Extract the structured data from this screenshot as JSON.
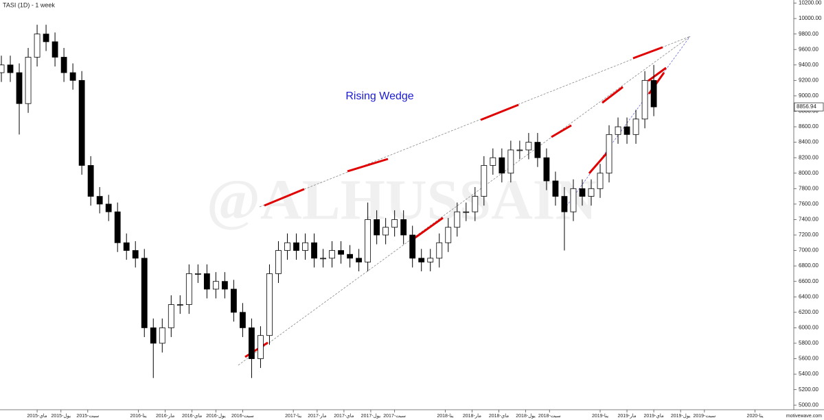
{
  "chart_data": {
    "type": "candlestick",
    "title": "TASI (1D) - 1 week",
    "annotation": "Rising Wedge",
    "watermark": "@ALHUSSAIN",
    "brand": "motivewave.com",
    "last_price_label": "8856.94",
    "x": [
      0,
      3,
      6,
      9,
      12,
      15,
      18,
      21,
      24,
      27,
      30,
      33,
      36,
      39,
      42,
      45,
      48,
      51,
      54,
      57,
      60,
      63,
      66,
      69,
      72,
      75,
      78,
      81,
      84,
      87,
      90,
      93,
      96,
      99,
      102,
      105,
      108,
      111,
      114,
      117,
      120,
      123,
      126,
      129,
      132,
      135,
      138,
      141,
      144,
      147,
      150,
      153,
      156,
      159,
      162,
      165,
      168,
      171,
      174,
      177,
      180,
      183,
      186,
      189,
      192,
      195,
      198,
      201,
      204,
      207,
      210,
      213,
      216,
      219
    ],
    "open": [
      9300,
      9400,
      9300,
      8900,
      9500,
      9800,
      9700,
      9500,
      9300,
      9200,
      8100,
      7700,
      7600,
      7500,
      7100,
      7000,
      6900,
      6000,
      5800,
      6000,
      6300,
      6300,
      6700,
      6700,
      6500,
      6600,
      6500,
      6200,
      6000,
      5600,
      5900,
      6700,
      7000,
      7100,
      7000,
      7100,
      6900,
      6900,
      7000,
      6950,
      6900,
      6850,
      7400,
      7200,
      7300,
      7400,
      7200,
      6900,
      6850,
      6900,
      7100,
      7300,
      7500,
      7500,
      7700,
      8100,
      8200,
      8000,
      8300,
      8300,
      8400,
      8200,
      7900,
      7700,
      7500,
      7800,
      7700,
      7800,
      8000,
      8500,
      8600,
      8500,
      8700,
      9200
    ],
    "high": [
      9520,
      9520,
      9420,
      9620,
      9920,
      9920,
      9820,
      9620,
      9420,
      9320,
      8220,
      7820,
      7720,
      7620,
      7220,
      7120,
      7020,
      6120,
      6120,
      6420,
      6420,
      6820,
      6820,
      6820,
      6720,
      6720,
      6620,
      6320,
      6120,
      6020,
      6820,
      7120,
      7220,
      7220,
      7220,
      7220,
      7020,
      7120,
      7120,
      7070,
      7020,
      7620,
      7520,
      7420,
      7520,
      7520,
      7320,
      7020,
      7020,
      7220,
      7420,
      7620,
      7620,
      7820,
      8220,
      8320,
      8320,
      8420,
      8420,
      8520,
      8520,
      8320,
      8020,
      7820,
      7920,
      7920,
      7920,
      8120,
      8620,
      8720,
      8720,
      8820,
      9320,
      9400
    ],
    "low": [
      9180,
      9180,
      8500,
      8780,
      9380,
      9580,
      9380,
      9180,
      9080,
      7980,
      7580,
      7480,
      7380,
      6980,
      6880,
      6780,
      5880,
      5350,
      5680,
      5880,
      6180,
      6180,
      6580,
      6380,
      6380,
      6380,
      6080,
      5880,
      5350,
      5480,
      5780,
      6580,
      6880,
      6880,
      6880,
      6780,
      6780,
      6780,
      6830,
      6780,
      6730,
      6730,
      7080,
      7080,
      7180,
      7080,
      6780,
      6730,
      6730,
      6780,
      6980,
      7180,
      7380,
      7380,
      7580,
      7980,
      7880,
      7880,
      8180,
      8180,
      8080,
      7780,
      7580,
      7000,
      7380,
      7580,
      7580,
      7680,
      7880,
      8380,
      8380,
      8380,
      8580,
      8737
    ],
    "close": [
      9400,
      9300,
      8900,
      9500,
      9800,
      9700,
      9500,
      9300,
      9200,
      8100,
      7700,
      7600,
      7500,
      7100,
      7000,
      6900,
      6000,
      5800,
      6000,
      6300,
      6300,
      6700,
      6700,
      6500,
      6600,
      6500,
      6200,
      6000,
      5600,
      5900,
      6700,
      7000,
      7100,
      7000,
      7100,
      6900,
      6900,
      7000,
      6950,
      6900,
      6850,
      7400,
      7200,
      7300,
      7400,
      7200,
      6900,
      6850,
      6900,
      7100,
      7300,
      7500,
      7500,
      7700,
      8100,
      8200,
      8000,
      8300,
      8300,
      8400,
      8200,
      7900,
      7700,
      7500,
      7800,
      7700,
      7800,
      8000,
      8500,
      8600,
      8500,
      8700,
      9200,
      8857
    ],
    "xlim": [
      0,
      266
    ],
    "xticks": [
      {
        "value": 12,
        "label": "ماي-2015"
      },
      {
        "value": 20,
        "label": "يول-2015"
      },
      {
        "value": 29,
        "label": "سبت-2015"
      },
      {
        "value": 46,
        "label": "ينا-2016"
      },
      {
        "value": 55,
        "label": "مار-2016"
      },
      {
        "value": 64,
        "label": "ماي-2016"
      },
      {
        "value": 72,
        "label": "يول-2016"
      },
      {
        "value": 81,
        "label": "سبت-2016"
      },
      {
        "value": 98,
        "label": "ينا-2017"
      },
      {
        "value": 106,
        "label": "مار-2017"
      },
      {
        "value": 115,
        "label": "ماي-2017"
      },
      {
        "value": 124,
        "label": "يول-2017"
      },
      {
        "value": 132,
        "label": "سبت-2017"
      },
      {
        "value": 149,
        "label": "ينا-2018"
      },
      {
        "value": 158,
        "label": "مار-2018"
      },
      {
        "value": 167,
        "label": "ماي-2018"
      },
      {
        "value": 176,
        "label": "يول-2018"
      },
      {
        "value": 184,
        "label": "سبت-2018"
      },
      {
        "value": 201,
        "label": "ينا-2019"
      },
      {
        "value": 210,
        "label": "مار-2019"
      },
      {
        "value": 219,
        "label": "ماي-2019"
      },
      {
        "value": 228,
        "label": "يول-2019"
      },
      {
        "value": 236,
        "label": "سبت-2019"
      },
      {
        "value": 253,
        "label": "ينا-2020"
      }
    ],
    "ylim": [
      4940,
      10240
    ],
    "yticks": [
      {
        "value": 5000,
        "label": "5000.00"
      },
      {
        "value": 5200,
        "label": "5200.00"
      },
      {
        "value": 5400,
        "label": "5400.00"
      },
      {
        "value": 5600,
        "label": "5600.00"
      },
      {
        "value": 5800,
        "label": "5800.00"
      },
      {
        "value": 6000,
        "label": "6000.00"
      },
      {
        "value": 6200,
        "label": "6200.00"
      },
      {
        "value": 6400,
        "label": "6400.00"
      },
      {
        "value": 6600,
        "label": "6600.00"
      },
      {
        "value": 6800,
        "label": "6800.00"
      },
      {
        "value": 7000,
        "label": "7000.00"
      },
      {
        "value": 7200,
        "label": "7200.00"
      },
      {
        "value": 7400,
        "label": "7400.00"
      },
      {
        "value": 7600,
        "label": "7600.00"
      },
      {
        "value": 7800,
        "label": "7800.00"
      },
      {
        "value": 8000,
        "label": "8000.00"
      },
      {
        "value": 8200,
        "label": "8200.00"
      },
      {
        "value": 8400,
        "label": "8400.00"
      },
      {
        "value": 8600,
        "label": "8600.00"
      },
      {
        "value": 8800,
        "label": "8800.00"
      },
      {
        "value": 9000,
        "label": "9000.00"
      },
      {
        "value": 9200,
        "label": "9200.00"
      },
      {
        "value": 9400,
        "label": "9400.00"
      },
      {
        "value": 9600,
        "label": "9600.00"
      },
      {
        "value": 9800,
        "label": "9800.00"
      },
      {
        "value": 10000,
        "label": "10000.00"
      },
      {
        "value": 10200,
        "label": "10200.00"
      }
    ],
    "up_color": "#ffffff",
    "down_color": "#000000"
  }
}
